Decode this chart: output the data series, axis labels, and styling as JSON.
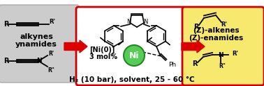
{
  "left_box_color": "#cccccc",
  "left_box_edge": "#aaaaaa",
  "center_box_edge": "#cc0000",
  "right_box_color": "#f7e96e",
  "arrow_color": "#dd0000",
  "ni_color": "#55cc55",
  "ni_edge": "#228822",
  "bottom_text": "H₂ (10 bar), solvent, 25 - 60 °C",
  "left_label1": "alkynes",
  "left_label2": "ynamides",
  "right_label1": "(Z)-alkenes",
  "right_label2": "(Z)-enamides",
  "ni_label": "Ni",
  "catalyst_label1": "[Ni(0)]",
  "catalyst_label2": "3 mol%"
}
